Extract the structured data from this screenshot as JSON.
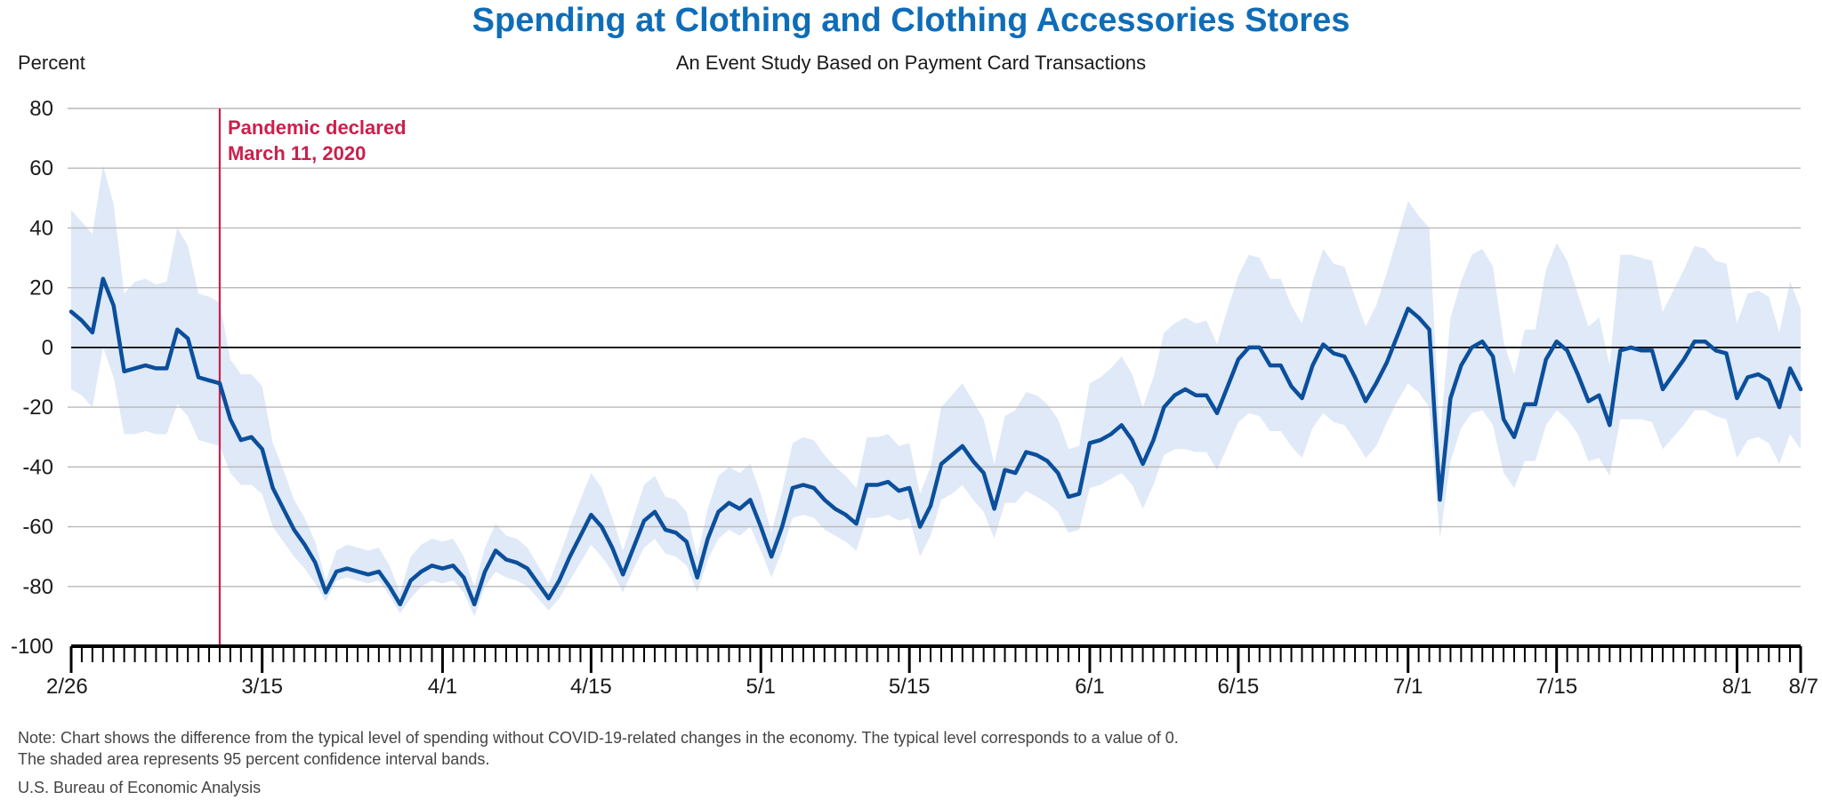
{
  "chart_data": {
    "type": "line",
    "title": "Spending at Clothing and Clothing Accessories Stores",
    "subtitle": "An Event Study Based on Payment Card Transactions",
    "ylabel": "Percent",
    "ylim": [
      -100,
      80
    ],
    "y_ticks": [
      "80",
      "60",
      "40",
      "20",
      "0",
      "-20",
      "-40",
      "-60",
      "-80",
      "-100"
    ],
    "x_start": "2/26",
    "x_end": "8/7",
    "x_tick_labels": [
      "2/26",
      "3/15",
      "4/1",
      "4/15",
      "5/1",
      "5/15",
      "6/1",
      "6/15",
      "7/1",
      "7/15",
      "8/1",
      "8/7"
    ],
    "grid": true,
    "annotation": {
      "line1": "Pandemic declared",
      "line2": "March 11, 2020",
      "x": "3/11"
    },
    "line_color": "#0b4f9c",
    "band_color": "#dfe9f7",
    "annotation_color": "#cc1f4c",
    "title_color": "#0f6db8",
    "series": [
      {
        "values": [
          12,
          9,
          5,
          23,
          14,
          -8,
          -7,
          -6,
          -7,
          -7,
          6,
          3,
          -10,
          -11,
          -12,
          -24,
          -31,
          -30,
          -34,
          -47,
          -54,
          -61,
          -66,
          -72,
          -82,
          -75,
          -74,
          -75,
          -76,
          -75,
          -80,
          -86,
          -78,
          -75,
          -73,
          -74,
          -73,
          -77,
          -86,
          -75,
          -68,
          -71,
          -72,
          -74,
          -79,
          -84,
          -78,
          -70,
          -63,
          -56,
          -60,
          -67,
          -76,
          -67,
          -58,
          -55,
          -61,
          -62,
          -65,
          -77,
          -64,
          -55,
          -52,
          -54,
          -51,
          -60,
          -70,
          -60,
          -47,
          -46,
          -47,
          -51,
          -54,
          -56,
          -59,
          -46,
          -46,
          -45,
          -48,
          -47,
          -60,
          -53,
          -39,
          -36,
          -33,
          -38,
          -42,
          -54,
          -41,
          -42,
          -35,
          -36,
          -38,
          -42,
          -50,
          -49,
          -32,
          -31,
          -29,
          -26,
          -31,
          -39,
          -31,
          -20,
          -16,
          -14,
          -16,
          -16,
          -22,
          -13,
          -4,
          0,
          0,
          -6,
          -6,
          -13,
          -17,
          -6,
          1,
          -2,
          -3,
          -10,
          -18,
          -12,
          -5,
          4,
          13,
          10,
          6,
          -51,
          -17,
          -6,
          0,
          2,
          -3,
          -24,
          -30,
          -19,
          -19,
          -4,
          2,
          -1,
          -9,
          -18,
          -16,
          -26,
          -1,
          0,
          -1,
          -1,
          -14,
          -9,
          -4,
          2,
          2,
          -1,
          -2,
          -17,
          -10,
          -9,
          -11,
          -20,
          -7,
          -14
        ],
        "lower": [
          -14,
          -16,
          -20,
          0,
          -10,
          -29,
          -29,
          -28,
          -29,
          -29,
          -19,
          -23,
          -31,
          -32,
          -33,
          -42,
          -46,
          -46,
          -49,
          -60,
          -65,
          -70,
          -74,
          -79,
          -85,
          -78,
          -77,
          -78,
          -79,
          -78,
          -83,
          -89,
          -84,
          -80,
          -78,
          -79,
          -78,
          -82,
          -90,
          -80,
          -75,
          -77,
          -78,
          -80,
          -84,
          -88,
          -84,
          -78,
          -72,
          -66,
          -70,
          -75,
          -82,
          -74,
          -67,
          -64,
          -69,
          -70,
          -73,
          -82,
          -71,
          -64,
          -61,
          -63,
          -60,
          -68,
          -77,
          -68,
          -57,
          -56,
          -57,
          -61,
          -63,
          -65,
          -68,
          -57,
          -57,
          -56,
          -58,
          -57,
          -70,
          -63,
          -51,
          -49,
          -46,
          -51,
          -55,
          -64,
          -52,
          -52,
          -48,
          -50,
          -52,
          -55,
          -62,
          -61,
          -47,
          -46,
          -44,
          -42,
          -46,
          -54,
          -46,
          -36,
          -34,
          -34,
          -35,
          -35,
          -41,
          -33,
          -25,
          -22,
          -23,
          -28,
          -28,
          -33,
          -37,
          -27,
          -22,
          -25,
          -26,
          -31,
          -37,
          -33,
          -25,
          -18,
          -12,
          -15,
          -20,
          -64,
          -38,
          -27,
          -22,
          -21,
          -26,
          -42,
          -47,
          -38,
          -38,
          -26,
          -21,
          -24,
          -29,
          -38,
          -37,
          -43,
          -24,
          -24,
          -24,
          -25,
          -34,
          -30,
          -26,
          -21,
          -21,
          -23,
          -24,
          -37,
          -31,
          -30,
          -32,
          -39,
          -29,
          -34
        ],
        "upper": [
          46,
          42,
          38,
          61,
          48,
          18,
          22,
          23,
          21,
          22,
          40,
          34,
          18,
          17,
          15,
          -4,
          -9,
          -9,
          -13,
          -32,
          -41,
          -51,
          -57,
          -65,
          -78,
          -68,
          -66,
          -67,
          -68,
          -67,
          -73,
          -82,
          -70,
          -66,
          -64,
          -65,
          -64,
          -70,
          -80,
          -67,
          -59,
          -63,
          -64,
          -67,
          -73,
          -79,
          -70,
          -60,
          -51,
          -42,
          -47,
          -57,
          -68,
          -57,
          -46,
          -43,
          -50,
          -51,
          -55,
          -70,
          -54,
          -43,
          -40,
          -42,
          -39,
          -49,
          -62,
          -48,
          -32,
          -30,
          -31,
          -36,
          -40,
          -43,
          -47,
          -30,
          -30,
          -29,
          -33,
          -32,
          -49,
          -40,
          -20,
          -16,
          -12,
          -18,
          -24,
          -39,
          -23,
          -21,
          -15,
          -16,
          -19,
          -24,
          -34,
          -33,
          -12,
          -10,
          -7,
          -3,
          -9,
          -20,
          -10,
          5,
          8,
          10,
          8,
          9,
          1,
          13,
          24,
          31,
          30,
          23,
          23,
          14,
          8,
          22,
          33,
          28,
          27,
          17,
          7,
          14,
          25,
          37,
          49,
          44,
          40,
          -30,
          10,
          22,
          31,
          33,
          27,
          2,
          -9,
          6,
          6,
          26,
          35,
          29,
          18,
          7,
          10,
          -6,
          31,
          31,
          30,
          29,
          12,
          19,
          26,
          34,
          33,
          29,
          28,
          8,
          18,
          19,
          17,
          5,
          22,
          13
        ]
      }
    ]
  },
  "note_line1": "Note: Chart shows the difference from the typical level of spending without COVID-19-related changes in the economy. The typical level corresponds to a value of 0.",
  "note_line2": "The shaded area represents 95 percent confidence interval bands.",
  "source": "U.S. Bureau of Economic Analysis"
}
